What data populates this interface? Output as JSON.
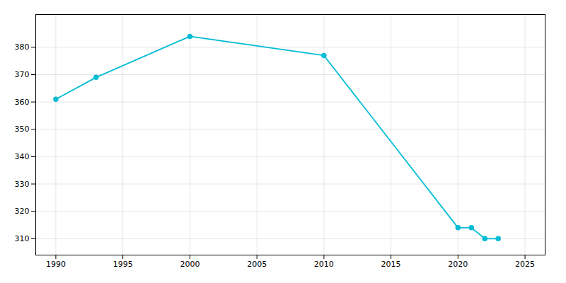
{
  "chart_data": {
    "type": "line",
    "x": [
      1990,
      1993,
      2000,
      2010,
      2020,
      2021,
      2022,
      2023
    ],
    "values": [
      361,
      369,
      384,
      377,
      314,
      314,
      310,
      310
    ],
    "color": "#00bcd4",
    "marker": "circle",
    "xlim": [
      1988.5,
      2026.5
    ],
    "ylim": [
      304,
      392
    ],
    "xticks": [
      1990,
      1995,
      2000,
      2005,
      2010,
      2015,
      2020,
      2025
    ],
    "yticks": [
      310,
      320,
      330,
      340,
      350,
      360,
      370,
      380
    ],
    "grid": true
  }
}
